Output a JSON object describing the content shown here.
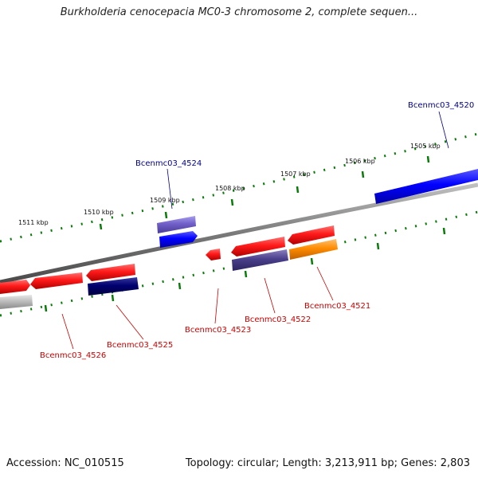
{
  "title": "Burkholderia cenocepacia MC0-3 chromosome 2, complete sequen...",
  "accession": "Accession: NC_010515",
  "summary": "Topology: circular; Length: 3,213,911 bp; Genes: 2,803",
  "colors": {
    "backbone": "#808080",
    "tick": "#0a7a0a",
    "plus_label": "#00008b",
    "minus_label": "#cc0000",
    "red": "#ff0000",
    "blue": "#0000ff",
    "navy": "#000070",
    "slate": "#4a3f8a",
    "lavender": "#7060c8",
    "orange": "#ff8c00",
    "grey": "#b8b8b8"
  },
  "scale_labels": [
    "1505 kbp",
    "1506 kbp",
    "1507 kbp",
    "1508 kbp",
    "1509 kbp",
    "1510 kbp",
    "1511 kbp"
  ],
  "genes": [
    {
      "locus": "Bcenmc03_4520",
      "strand": "+",
      "color": "blue"
    },
    {
      "locus": "Bcenmc03_4521",
      "strand": "-",
      "color": "orange"
    },
    {
      "locus": "Bcenmc03_4522",
      "strand": "-",
      "color": "slate"
    },
    {
      "locus": "Bcenmc03_4523",
      "strand": "-",
      "color": "red"
    },
    {
      "locus": "Bcenmc03_4524",
      "strand": "+",
      "color": "lavender"
    },
    {
      "locus": "Bcenmc03_4525",
      "strand": "-",
      "color": "navy"
    },
    {
      "locus": "Bcenmc03_4526",
      "strand": "-",
      "color": "grey"
    }
  ]
}
